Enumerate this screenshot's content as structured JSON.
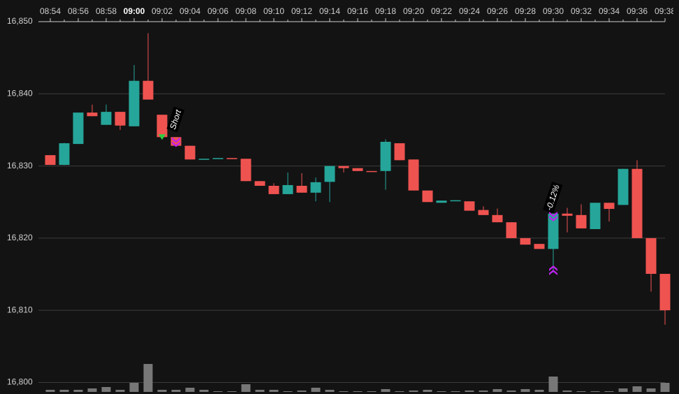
{
  "chart_data": {
    "type": "candlestick",
    "categories": [
      "08:54",
      null,
      "08:56",
      null,
      "08:58",
      null,
      "09:00",
      null,
      "09:02",
      null,
      "09:04",
      null,
      "09:06",
      null,
      "09:08",
      null,
      "09:10",
      null,
      "09:12",
      null,
      "09:14",
      null,
      "09:16",
      null,
      "09:18",
      null,
      "09:20",
      null,
      "09:22",
      null,
      "09:24",
      null,
      "09:26",
      null,
      "09:28",
      null,
      "09:30",
      null,
      "09:32",
      null,
      "09:34",
      null,
      "09:36",
      null,
      "09:38"
    ],
    "bold_category_index": 6,
    "open": [
      16831.5,
      16830.15,
      16833.05,
      16837.4,
      16835.7,
      16837.5,
      16835.5,
      16841.8,
      16837.1,
      16834.0,
      16832.8,
      16830.9,
      16831.0,
      16831.1,
      16831.0,
      16827.9,
      16827.25,
      16826.1,
      16827.25,
      16826.3,
      16827.8,
      16830.0,
      16829.7,
      16829.3,
      16829.3,
      16833.15,
      16830.9,
      16826.6,
      16824.9,
      16825.2,
      16825.1,
      16823.9,
      16823.2,
      16822.2,
      16820.0,
      16819.2,
      16818.5,
      16823.4,
      16823.2,
      16821.25,
      16824.9,
      16824.6,
      16829.6,
      16820.0,
      16815.05
    ],
    "high": [
      16831.5,
      16833.2,
      16837.4,
      16838.5,
      16838.5,
      16837.5,
      16844.0,
      16848.4,
      16837.1,
      16834.0,
      16832.8,
      16831.0,
      16831.1,
      16831.1,
      16831.0,
      16827.9,
      16827.6,
      16829.1,
      16829.0,
      16828.4,
      16830.0,
      16830.0,
      16829.7,
      16829.3,
      16833.7,
      16833.15,
      16830.9,
      16826.6,
      16825.2,
      16825.25,
      16825.1,
      16824.4,
      16824.1,
      16822.2,
      16820.0,
      16819.2,
      16823.4,
      16824.2,
      16824.7,
      16824.9,
      16824.9,
      16829.6,
      16830.8,
      16820.0,
      16815.05
    ],
    "low": [
      16830.15,
      16830.1,
      16833.05,
      16836.9,
      16835.7,
      16835.0,
      16835.5,
      16839.2,
      16834.0,
      16832.8,
      16830.9,
      16830.9,
      16831.0,
      16830.95,
      16827.9,
      16827.25,
      16826.1,
      16826.1,
      16826.3,
      16825.1,
      16825.0,
      16829.1,
      16829.3,
      16829.2,
      16826.7,
      16830.8,
      16826.6,
      16825.0,
      16824.9,
      16825.2,
      16823.8,
      16823.2,
      16822.2,
      16820.0,
      16819.1,
      16818.5,
      16815.25,
      16820.8,
      16821.35,
      16821.25,
      16822.3,
      16824.6,
      16820.0,
      16812.6,
      16808.0
    ],
    "close": [
      16830.15,
      16833.15,
      16837.4,
      16836.9,
      16837.5,
      16835.6,
      16841.8,
      16839.2,
      16834.0,
      16832.8,
      16830.9,
      16831.0,
      16831.1,
      16830.95,
      16827.9,
      16827.25,
      16826.1,
      16827.35,
      16826.3,
      16827.75,
      16830.0,
      16829.7,
      16829.3,
      16829.2,
      16833.35,
      16830.8,
      16826.6,
      16825.0,
      16825.2,
      16825.25,
      16823.8,
      16823.2,
      16822.2,
      16820.0,
      16819.1,
      16818.5,
      16823.4,
      16823.1,
      16821.35,
      16824.9,
      16824.05,
      16829.6,
      16820.0,
      16815.05,
      16810.0
    ],
    "volume": [
      3,
      3,
      3,
      5,
      7,
      3,
      13,
      40,
      3,
      3,
      6,
      3,
      1,
      1,
      11,
      3,
      3,
      1,
      2,
      6,
      3,
      1,
      1,
      1,
      4,
      1,
      2,
      3,
      1,
      1,
      2,
      2,
      4,
      2,
      4,
      3,
      22,
      2,
      1,
      1,
      1,
      5,
      8,
      5,
      13
    ],
    "up_color": "#26a69a",
    "down_color": "#ef5350",
    "volume_color": "#777777",
    "ylim": [
      16798.4,
      16850
    ],
    "yticks": [
      {
        "value": 16800,
        "label": "16,800"
      },
      {
        "value": 16810,
        "label": "16,810"
      },
      {
        "value": 16820,
        "label": "16,820"
      },
      {
        "value": 16830,
        "label": "16,830"
      },
      {
        "value": 16840,
        "label": "16,840"
      },
      {
        "value": 16850,
        "label": "16,850"
      }
    ],
    "grid": true,
    "markers": [
      {
        "index": 8,
        "price": 16834.0,
        "color": "#2ecc40",
        "shape": "triangle-down"
      },
      {
        "index": 9,
        "price": 16833.4,
        "color": "#c020f0",
        "shape": "double-down"
      },
      {
        "index": 36,
        "price": 16823.1,
        "color": "#c020f0",
        "shape": "double-down"
      },
      {
        "index": 36,
        "price": 16815.25,
        "color": "#c020f0",
        "shape": "double-up"
      }
    ],
    "annotations": [
      {
        "text": "Short",
        "index": 9,
        "price": 16836.4
      },
      {
        "text": "-0.12%",
        "index": 36,
        "price": 16825.6
      }
    ]
  }
}
